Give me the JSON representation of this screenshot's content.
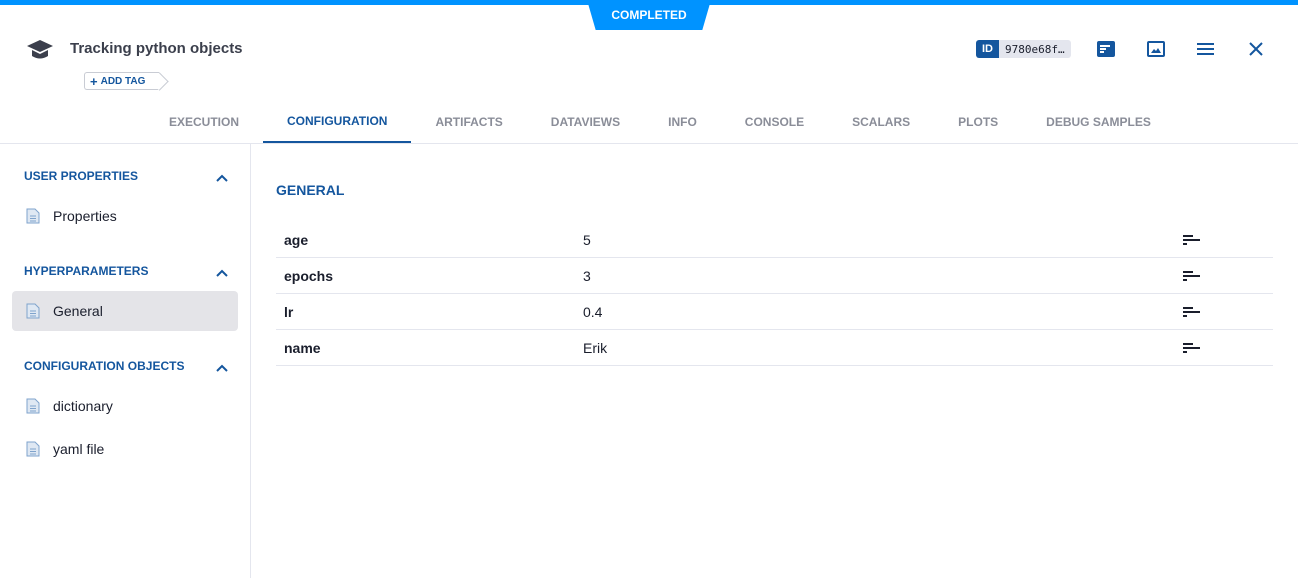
{
  "status": "COMPLETED",
  "header": {
    "title": "Tracking python objects",
    "add_tag": "ADD TAG",
    "id_label": "ID",
    "id_value": "9780e68f…"
  },
  "tabs": [
    "EXECUTION",
    "CONFIGURATION",
    "ARTIFACTS",
    "DATAVIEWS",
    "INFO",
    "CONSOLE",
    "SCALARS",
    "PLOTS",
    "DEBUG SAMPLES"
  ],
  "active_tab": "CONFIGURATION",
  "sidebar": {
    "sections": [
      {
        "title": "USER PROPERTIES",
        "items": [
          "Properties"
        ]
      },
      {
        "title": "HYPERPARAMETERS",
        "items": [
          "General"
        ]
      },
      {
        "title": "CONFIGURATION OBJECTS",
        "items": [
          "dictionary",
          "yaml file"
        ]
      }
    ],
    "selected": "General"
  },
  "main": {
    "section_title": "GENERAL",
    "rows": [
      {
        "key": "age",
        "value": "5"
      },
      {
        "key": "epochs",
        "value": "3"
      },
      {
        "key": "lr",
        "value": "0.4"
      },
      {
        "key": "name",
        "value": "Erik"
      }
    ]
  },
  "colors": {
    "accent": "#0093ff",
    "primary": "#14569e"
  }
}
